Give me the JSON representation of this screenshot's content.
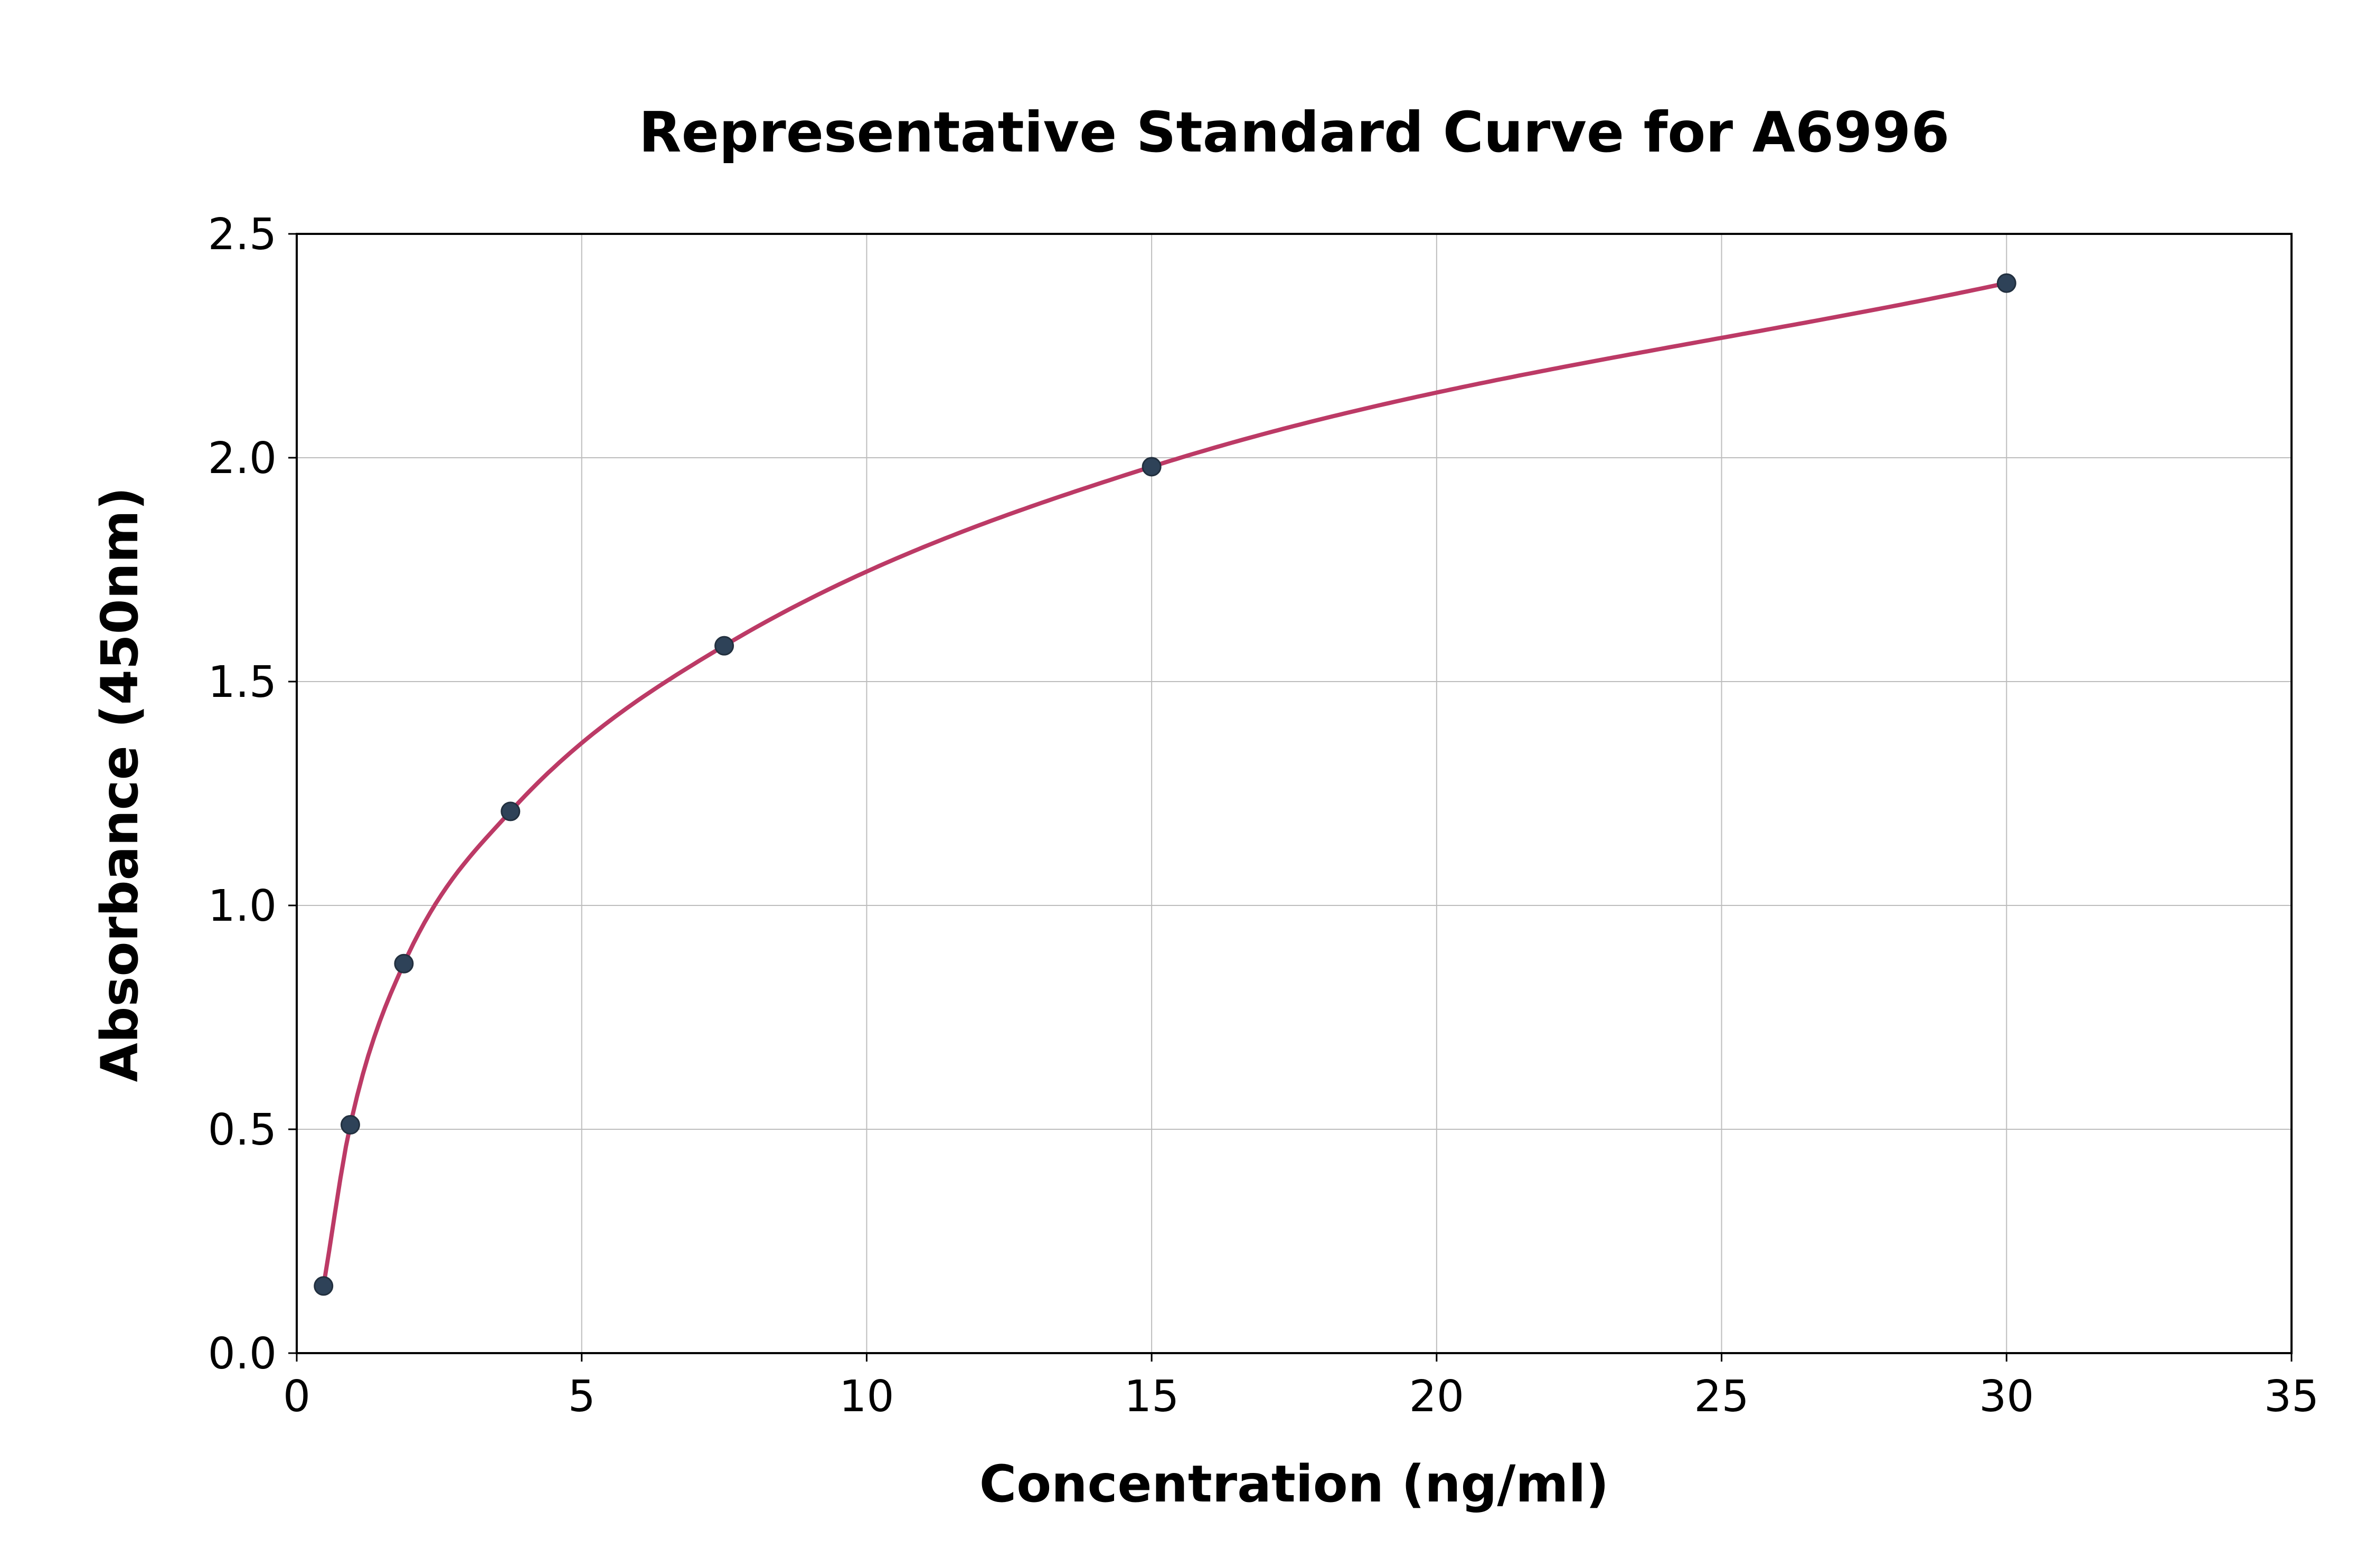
{
  "title": "Representative Standard Curve for A6996",
  "chart_data": {
    "type": "scatter",
    "title": "Representative Standard Curve for A6996",
    "xlabel": "Concentration (ng/ml)",
    "ylabel": "Absorbance (450nm)",
    "x": [
      0.47,
      0.94,
      1.88,
      3.75,
      7.5,
      15,
      30
    ],
    "y": [
      0.15,
      0.51,
      0.87,
      1.21,
      1.58,
      1.98,
      2.39
    ],
    "xlim": [
      0,
      35
    ],
    "ylim": [
      0,
      2.5
    ],
    "xticks": [
      0,
      5,
      10,
      15,
      20,
      25,
      30,
      35
    ],
    "yticks": [
      0.0,
      0.5,
      1.0,
      1.5,
      2.0,
      2.5
    ],
    "grid": true,
    "legend": "none",
    "curve_color": "#bc3a66",
    "point_color": "#2e4258",
    "point_edge_color": "#22303f",
    "grid_color": "#bdbdbd",
    "spine_color": "#000000",
    "tick_label_color": "#000000"
  }
}
